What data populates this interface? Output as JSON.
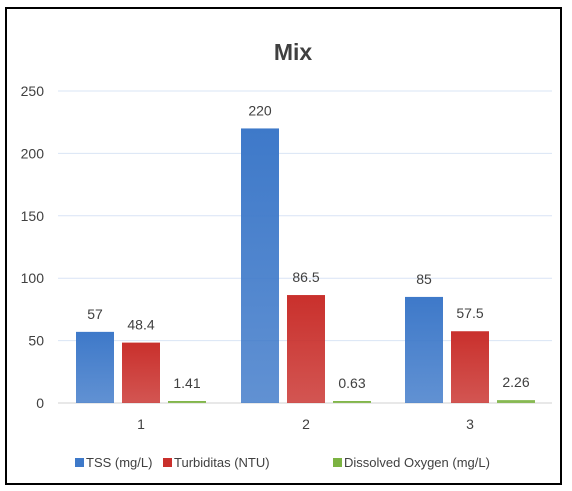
{
  "chart_data": {
    "type": "bar",
    "title": "Mix",
    "categories": [
      "1",
      "2",
      "3"
    ],
    "series": [
      {
        "name": "TSS (mg/L)",
        "values": [
          57,
          220,
          85
        ],
        "labels": [
          "57",
          "220",
          "85"
        ],
        "color": "#3E79C9"
      },
      {
        "name": "Turbiditas (NTU)",
        "values": [
          48.4,
          86.5,
          57.5
        ],
        "labels": [
          "48.4",
          "86.5",
          "57.5"
        ],
        "color": "#C9302C"
      },
      {
        "name": "Dissolved Oxygen (mg/L)",
        "values": [
          1.41,
          0.63,
          2.26
        ],
        "labels": [
          "1.41",
          "0.63",
          "2.26"
        ],
        "color": "#7CB342"
      }
    ],
    "ylim": [
      0,
      250
    ],
    "yticks": [
      0,
      50,
      100,
      150,
      200,
      250
    ],
    "grid": true,
    "legend": "bottom",
    "colors": {
      "title": "#1F3864",
      "text": "#404040",
      "grid": "#D9E4F5"
    }
  }
}
